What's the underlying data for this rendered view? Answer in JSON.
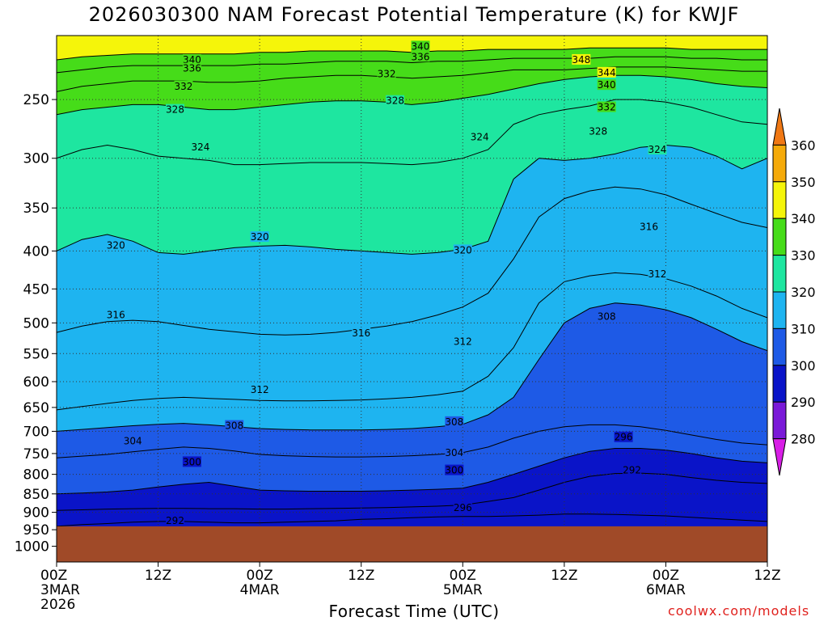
{
  "title": "2026030300 NAM Forecast Potential Temperature (K) for KWJF",
  "credit": "coolwx.com/models",
  "chart_data": {
    "type": "heatmap",
    "title": "2026030300 NAM Forecast Potential Temperature (K) for KWJF",
    "xlabel": "Forecast Time (UTC)",
    "ylabel": "",
    "y_axis": "pressure (hPa), inverted",
    "y_ticks": [
      250,
      300,
      350,
      400,
      450,
      500,
      550,
      600,
      650,
      700,
      750,
      800,
      850,
      900,
      950,
      1000
    ],
    "y_range": [
      1050,
      205
    ],
    "x_range_hours": [
      0,
      84
    ],
    "x_ticks": [
      {
        "hour": 0,
        "label": [
          "00Z",
          "3MAR",
          "2026"
        ]
      },
      {
        "hour": 12,
        "label": [
          "12Z"
        ]
      },
      {
        "hour": 24,
        "label": [
          "00Z",
          "4MAR"
        ]
      },
      {
        "hour": 36,
        "label": [
          "12Z"
        ]
      },
      {
        "hour": 48,
        "label": [
          "00Z",
          "5MAR"
        ]
      },
      {
        "hour": 60,
        "label": [
          "12Z"
        ]
      },
      {
        "hour": 72,
        "label": [
          "00Z",
          "6MAR"
        ]
      },
      {
        "hour": 84,
        "label": [
          "12Z"
        ]
      }
    ],
    "surface_pressure": 940,
    "grid": true,
    "colorbar": {
      "levels": [
        280,
        290,
        300,
        310,
        320,
        330,
        340,
        350,
        360
      ],
      "colors": [
        "#d81ee6",
        "#7a19d8",
        "#0a14c8",
        "#1e5ae6",
        "#1eb4f0",
        "#1ee6a0",
        "#46dc19",
        "#f5f50a",
        "#f5aa0a",
        "#f07814"
      ],
      "labels": [
        "280",
        "290",
        "300",
        "310",
        "320",
        "330",
        "340",
        "350",
        "360"
      ]
    },
    "series": [
      {
        "level": 292,
        "p": [
          940,
          935,
          932,
          928,
          926,
          926,
          928,
          930,
          930,
          928,
          926,
          924,
          920,
          918,
          915,
          913,
          912,
          912,
          910,
          908,
          905,
          905,
          906,
          908,
          910,
          914,
          918,
          922,
          926,
          930
        ]
      },
      {
        "level": 296,
        "p": [
          895,
          893,
          891,
          890,
          889,
          889,
          890,
          890,
          891,
          891,
          890,
          889,
          888,
          887,
          885,
          883,
          880,
          870,
          860,
          840,
          820,
          805,
          798,
          797,
          800,
          808,
          815,
          820,
          823,
          826
        ]
      },
      {
        "level": 300,
        "p": [
          850,
          848,
          845,
          840,
          832,
          825,
          820,
          830,
          840,
          842,
          843,
          843,
          843,
          842,
          840,
          838,
          835,
          820,
          800,
          780,
          760,
          745,
          738,
          738,
          742,
          750,
          760,
          768,
          772,
          775
        ]
      },
      {
        "level": 304,
        "p": [
          760,
          756,
          752,
          746,
          740,
          735,
          738,
          744,
          752,
          755,
          757,
          758,
          758,
          757,
          755,
          752,
          748,
          735,
          715,
          700,
          690,
          686,
          686,
          690,
          698,
          708,
          718,
          726,
          730,
          732
        ]
      },
      {
        "level": 308,
        "p": [
          700,
          696,
          692,
          688,
          685,
          683,
          686,
          690,
          694,
          696,
          697,
          697,
          697,
          696,
          694,
          690,
          685,
          665,
          630,
          560,
          500,
          478,
          470,
          473,
          480,
          492,
          510,
          530,
          545,
          555
        ]
      },
      {
        "level": 312,
        "p": [
          655,
          648,
          642,
          636,
          632,
          630,
          632,
          634,
          636,
          637,
          637,
          636,
          635,
          633,
          630,
          625,
          618,
          590,
          540,
          470,
          440,
          432,
          428,
          430,
          436,
          446,
          460,
          478,
          492,
          500
        ]
      },
      {
        "level": 316,
        "p": [
          515,
          505,
          498,
          496,
          498,
          504,
          510,
          514,
          518,
          519,
          518,
          515,
          510,
          505,
          498,
          488,
          476,
          456,
          410,
          360,
          340,
          332,
          328,
          330,
          336,
          346,
          356,
          366,
          372,
          378
        ]
      },
      {
        "level": 320,
        "p": [
          400,
          386,
          380,
          388,
          402,
          404,
          400,
          396,
          394,
          393,
          395,
          398,
          400,
          402,
          404,
          402,
          398,
          388,
          320,
          300,
          302,
          300,
          296,
          290,
          288,
          290,
          298,
          310,
          300,
          290
        ]
      },
      {
        "level": 324,
        "p": [
          300,
          292,
          288,
          292,
          298,
          300,
          302,
          306,
          306,
          305,
          304,
          304,
          304,
          305,
          306,
          304,
          300,
          292,
          270,
          262,
          258,
          255,
          250,
          250,
          252,
          256,
          262,
          268,
          270,
          272
        ]
      },
      {
        "level": 328,
        "p": [
          262,
          258,
          256,
          254,
          254,
          256,
          258,
          258,
          256,
          254,
          252,
          251,
          251,
          252,
          254,
          252,
          249,
          246,
          242,
          238,
          235,
          233,
          232,
          232,
          233,
          235,
          238,
          240,
          241,
          242
        ]
      },
      {
        "level": 332,
        "p": [
          244,
          240,
          238,
          236,
          236,
          236,
          237,
          237,
          236,
          234,
          233,
          232,
          232,
          233,
          234,
          233,
          232,
          230,
          228,
          228,
          228,
          227,
          226,
          226,
          226,
          227,
          228,
          229,
          229,
          230
        ]
      },
      {
        "level": 336,
        "p": [
          230,
          228,
          226,
          225,
          225,
          225,
          225,
          225,
          224,
          224,
          223,
          222,
          222,
          222,
          223,
          222,
          222,
          221,
          220,
          220,
          220,
          220,
          219,
          219,
          219,
          220,
          220,
          221,
          221,
          221
        ]
      },
      {
        "level": 340,
        "p": [
          221,
          219,
          218,
          217,
          217,
          217,
          217,
          217,
          216,
          216,
          215,
          215,
          215,
          215,
          216,
          215,
          215,
          214,
          214,
          214,
          214,
          213,
          213,
          213,
          213,
          214,
          214,
          214,
          214,
          214
        ]
      }
    ],
    "series_times_hours": [
      0,
      3,
      6,
      9,
      12,
      15,
      18,
      21,
      24,
      27,
      30,
      33,
      36,
      39,
      42,
      45,
      48,
      51,
      54,
      57,
      60,
      63,
      66,
      69,
      72,
      75,
      78,
      81,
      84,
      84
    ],
    "contour_labels": [
      {
        "text": "340",
        "t": 16,
        "p": 221
      },
      {
        "text": "336",
        "t": 16,
        "p": 227
      },
      {
        "text": "332",
        "t": 15,
        "p": 240
      },
      {
        "text": "328",
        "t": 14,
        "p": 258
      },
      {
        "text": "324",
        "t": 17,
        "p": 290
      },
      {
        "text": "320",
        "t": 7,
        "p": 393
      },
      {
        "text": "320",
        "t": 24,
        "p": 383
      },
      {
        "text": "316",
        "t": 7,
        "p": 488
      },
      {
        "text": "316",
        "t": 36,
        "p": 516
      },
      {
        "text": "312",
        "t": 24,
        "p": 615
      },
      {
        "text": "308",
        "t": 21,
        "p": 688
      },
      {
        "text": "304",
        "t": 9,
        "p": 722
      },
      {
        "text": "300",
        "t": 16,
        "p": 770
      },
      {
        "text": "292",
        "t": 14,
        "p": 924
      },
      {
        "text": "340",
        "t": 43,
        "p": 212
      },
      {
        "text": "336",
        "t": 43,
        "p": 219
      },
      {
        "text": "332",
        "t": 39,
        "p": 231
      },
      {
        "text": "328",
        "t": 40,
        "p": 251
      },
      {
        "text": "324",
        "t": 50,
        "p": 281
      },
      {
        "text": "320",
        "t": 48,
        "p": 399
      },
      {
        "text": "312",
        "t": 48,
        "p": 530
      },
      {
        "text": "308",
        "t": 47,
        "p": 680
      },
      {
        "text": "304",
        "t": 47,
        "p": 748
      },
      {
        "text": "300",
        "t": 47,
        "p": 790
      },
      {
        "text": "296",
        "t": 48,
        "p": 887
      },
      {
        "text": "348",
        "t": 62,
        "p": 221
      },
      {
        "text": "344",
        "t": 65,
        "p": 230
      },
      {
        "text": "340",
        "t": 65,
        "p": 239
      },
      {
        "text": "332",
        "t": 65,
        "p": 256
      },
      {
        "text": "328",
        "t": 64,
        "p": 276
      },
      {
        "text": "324",
        "t": 71,
        "p": 292
      },
      {
        "text": "316",
        "t": 70,
        "p": 371
      },
      {
        "text": "312",
        "t": 71,
        "p": 430
      },
      {
        "text": "308",
        "t": 65,
        "p": 490
      },
      {
        "text": "296",
        "t": 67,
        "p": 713
      },
      {
        "text": "292",
        "t": 68,
        "p": 790
      }
    ]
  }
}
